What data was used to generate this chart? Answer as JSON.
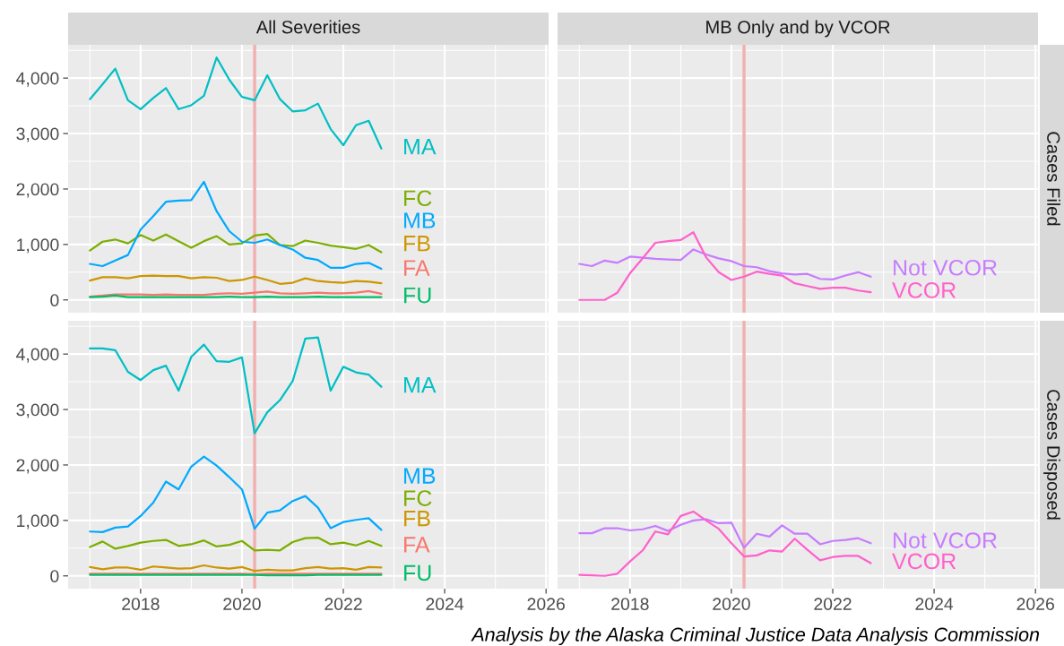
{
  "chart_data": [
    {
      "type": "line",
      "title": "All Severities",
      "x": [
        2017,
        2017.25,
        2017.5,
        2017.75,
        2018,
        2018.25,
        2018.5,
        2018.75,
        2019,
        2019.25,
        2019.5,
        2019.75,
        2020,
        2020.25,
        2020.5,
        2020.75,
        2021,
        2021.25,
        2021.5,
        2021.75,
        2022,
        2022.25,
        2022.5,
        2022.75
      ],
      "xlim": [
        2016.57,
        2026.05
      ],
      "xticks": [
        2018,
        2020,
        2022,
        2024,
        2026
      ],
      "ylim": [
        -230,
        4600
      ],
      "yticks": [
        0,
        {
          "value": 1000,
          "label": "1,000"
        },
        {
          "value": 2000,
          "label": "2,000"
        },
        {
          "value": 3000,
          "label": "3,000"
        },
        {
          "value": 4000,
          "label": "4,000"
        }
      ],
      "tick_labels": "y",
      "grid": true,
      "legend": false,
      "ref_lines": [
        {
          "axis": "x",
          "value": 2020.25,
          "color": "#f2b1b1"
        }
      ],
      "series": [
        {
          "name": "FA",
          "color": "#f8766d",
          "values": [
            60,
            80,
            100,
            100,
            100,
            90,
            100,
            90,
            90,
            90,
            110,
            120,
            110,
            130,
            150,
            120,
            110,
            120,
            130,
            120,
            120,
            130,
            160,
            110
          ]
        },
        {
          "name": "FB",
          "color": "#cd9600",
          "values": [
            350,
            410,
            410,
            390,
            430,
            440,
            430,
            430,
            390,
            410,
            400,
            340,
            360,
            420,
            360,
            290,
            310,
            390,
            340,
            320,
            310,
            340,
            330,
            300
          ]
        },
        {
          "name": "FC",
          "color": "#7cae00",
          "values": [
            890,
            1050,
            1090,
            1020,
            1170,
            1070,
            1180,
            1060,
            940,
            1060,
            1150,
            1000,
            1020,
            1160,
            1190,
            990,
            970,
            1070,
            1030,
            980,
            950,
            920,
            990,
            860
          ]
        },
        {
          "name": "FU",
          "color": "#00be67",
          "values": [
            50,
            60,
            80,
            50,
            50,
            50,
            50,
            50,
            50,
            50,
            50,
            60,
            50,
            50,
            60,
            50,
            50,
            50,
            60,
            50,
            50,
            50,
            50,
            50
          ]
        },
        {
          "name": "MA",
          "color": "#00bfc4",
          "values": [
            3620,
            3890,
            4170,
            3600,
            3440,
            3640,
            3820,
            3440,
            3510,
            3680,
            4370,
            3970,
            3660,
            3600,
            4050,
            3620,
            3400,
            3420,
            3540,
            3080,
            2790,
            3150,
            3230,
            2730
          ]
        },
        {
          "name": "MB",
          "color": "#00a9ff",
          "values": [
            650,
            610,
            710,
            810,
            1270,
            1510,
            1770,
            1790,
            1800,
            2130,
            1600,
            1240,
            1050,
            1030,
            1090,
            990,
            910,
            760,
            720,
            580,
            580,
            650,
            670,
            560
          ]
        }
      ]
    },
    {
      "type": "line",
      "title": "MB Only and by VCOR",
      "annotations": [
        "Cases Filed"
      ],
      "x": [
        2017,
        2017.25,
        2017.5,
        2017.75,
        2018,
        2018.25,
        2018.5,
        2018.75,
        2019,
        2019.25,
        2019.5,
        2019.75,
        2020,
        2020.25,
        2020.5,
        2020.75,
        2021,
        2021.25,
        2021.5,
        2021.75,
        2022,
        2022.25,
        2022.5,
        2022.75
      ],
      "xlim": [
        2016.57,
        2026.05
      ],
      "xticks": [
        2018,
        2020,
        2022,
        2024,
        2026
      ],
      "ylim": [
        -230,
        4600
      ],
      "yticks": [
        0,
        1000,
        2000,
        3000,
        4000
      ],
      "tick_labels": false,
      "grid": true,
      "legend": false,
      "ref_lines": [
        {
          "axis": "x",
          "value": 2020.25,
          "color": "#f2b1b1"
        }
      ],
      "series": [
        {
          "name": "Not VCOR",
          "color": "#c77cff",
          "values": [
            650,
            610,
            710,
            670,
            780,
            760,
            740,
            730,
            720,
            910,
            820,
            750,
            700,
            610,
            590,
            520,
            480,
            460,
            470,
            380,
            370,
            440,
            500,
            420
          ]
        },
        {
          "name": "VCOR",
          "color": "#ff61cc",
          "values": [
            0,
            0,
            0,
            130,
            480,
            750,
            1030,
            1060,
            1080,
            1220,
            770,
            500,
            360,
            420,
            510,
            470,
            440,
            300,
            250,
            200,
            220,
            220,
            170,
            140
          ]
        }
      ]
    },
    {
      "type": "line",
      "x": [
        2017,
        2017.25,
        2017.5,
        2017.75,
        2018,
        2018.25,
        2018.5,
        2018.75,
        2019,
        2019.25,
        2019.5,
        2019.75,
        2020,
        2020.25,
        2020.5,
        2020.75,
        2021,
        2021.25,
        2021.5,
        2021.75,
        2022,
        2022.25,
        2022.5,
        2022.75
      ],
      "xlim": [
        2016.57,
        2026.05
      ],
      "xticks": [
        2018,
        2020,
        2022,
        2024,
        2026
      ],
      "ylim": [
        -230,
        4600
      ],
      "yticks": [
        0,
        {
          "value": 1000,
          "label": "1,000"
        },
        {
          "value": 2000,
          "label": "2,000"
        },
        {
          "value": 3000,
          "label": "3,000"
        },
        {
          "value": 4000,
          "label": "4,000"
        }
      ],
      "grid": true,
      "legend": false,
      "ref_lines": [
        {
          "axis": "x",
          "value": 2020.25,
          "color": "#f2b1b1"
        }
      ],
      "series": [
        {
          "name": "FA",
          "color": "#f8766d",
          "values": [
            40,
            40,
            40,
            40,
            40,
            40,
            40,
            40,
            40,
            40,
            40,
            40,
            40,
            30,
            40,
            40,
            40,
            40,
            40,
            40,
            40,
            40,
            40,
            40
          ]
        },
        {
          "name": "FB",
          "color": "#cd9600",
          "values": [
            160,
            120,
            150,
            150,
            110,
            170,
            150,
            130,
            140,
            190,
            150,
            130,
            160,
            90,
            110,
            100,
            100,
            140,
            160,
            130,
            140,
            110,
            160,
            150
          ]
        },
        {
          "name": "FC",
          "color": "#7cae00",
          "values": [
            520,
            620,
            490,
            540,
            600,
            630,
            650,
            540,
            570,
            640,
            530,
            560,
            630,
            460,
            470,
            460,
            610,
            680,
            690,
            570,
            600,
            550,
            630,
            540
          ]
        },
        {
          "name": "FU",
          "color": "#00be67",
          "values": [
            20,
            20,
            20,
            20,
            20,
            20,
            20,
            20,
            20,
            20,
            20,
            20,
            20,
            20,
            10,
            10,
            10,
            10,
            20,
            20,
            20,
            20,
            20,
            20
          ]
        },
        {
          "name": "MA",
          "color": "#00bfc4",
          "values": [
            4100,
            4100,
            4070,
            3680,
            3530,
            3710,
            3790,
            3340,
            3950,
            4170,
            3870,
            3860,
            3940,
            2570,
            2950,
            3170,
            3510,
            4280,
            4300,
            3340,
            3770,
            3670,
            3630,
            3410
          ]
        },
        {
          "name": "MB",
          "color": "#00a9ff",
          "values": [
            800,
            790,
            870,
            890,
            1080,
            1320,
            1700,
            1560,
            1970,
            2150,
            1990,
            1780,
            1560,
            850,
            1140,
            1180,
            1350,
            1440,
            1230,
            860,
            970,
            1010,
            1040,
            830
          ]
        }
      ]
    },
    {
      "type": "line",
      "annotations": [
        "Cases Disposed",
        "Analysis by the Alaska Criminal Justice Data Analysis Commission"
      ],
      "x": [
        2017,
        2017.25,
        2017.5,
        2017.75,
        2018,
        2018.25,
        2018.5,
        2018.75,
        2019,
        2019.25,
        2019.5,
        2019.75,
        2020,
        2020.25,
        2020.5,
        2020.75,
        2021,
        2021.25,
        2021.5,
        2021.75,
        2022,
        2022.25,
        2022.5,
        2022.75
      ],
      "xlim": [
        2016.57,
        2026.05
      ],
      "xticks": [
        2018,
        2020,
        2022,
        2024,
        2026
      ],
      "ylim": [
        -230,
        4600
      ],
      "yticks": [
        0,
        1000,
        2000,
        3000,
        4000
      ],
      "tick_labels": "x",
      "grid": true,
      "legend": false,
      "ref_lines": [
        {
          "axis": "x",
          "value": 2020.25,
          "color": "#f2b1b1"
        }
      ],
      "series": [
        {
          "name": "Not VCOR",
          "color": "#c77cff",
          "values": [
            770,
            770,
            860,
            860,
            820,
            840,
            900,
            810,
            920,
            1000,
            1020,
            950,
            960,
            510,
            760,
            710,
            910,
            760,
            760,
            570,
            630,
            650,
            680,
            590
          ]
        },
        {
          "name": "VCOR",
          "color": "#ff61cc",
          "values": [
            20,
            10,
            0,
            40,
            260,
            460,
            800,
            750,
            1080,
            1160,
            1000,
            850,
            590,
            350,
            370,
            460,
            440,
            670,
            470,
            280,
            340,
            360,
            360,
            230
          ]
        }
      ]
    }
  ]
}
